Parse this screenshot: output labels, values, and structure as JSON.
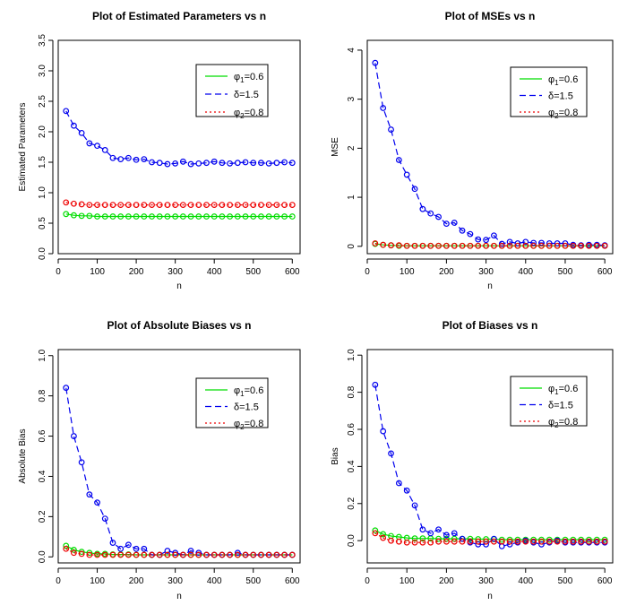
{
  "figure": {
    "panels": [
      {
        "title": "Plot of Estimated Parameters vs n",
        "xlabel": "n",
        "ylabel": "Estimated Parameters"
      },
      {
        "title": "Plot of MSEs vs n",
        "xlabel": "n",
        "ylabel": "MSE"
      },
      {
        "title": "Plot of Absolute Biases vs n",
        "xlabel": "n",
        "ylabel": "Absolute Bias"
      },
      {
        "title": "Plot of Biases vs n",
        "xlabel": "n",
        "ylabel": "Bias"
      }
    ],
    "legend": [
      {
        "symbol": "φ",
        "sub": "1",
        "rest": "=0.6",
        "color": "#00dd00",
        "dash": "solid"
      },
      {
        "symbol": "δ",
        "sub": "",
        "rest": "=1.5",
        "color": "#0000ee",
        "dash": "dashed"
      },
      {
        "symbol": "φ",
        "sub": "2",
        "rest": "=0.8",
        "color": "#ee0000",
        "dash": "dotted"
      }
    ]
  },
  "chart_data": [
    {
      "type": "line",
      "title": "Plot of Estimated Parameters vs n",
      "xlabel": "n",
      "ylabel": "Estimated Parameters",
      "xlim": [
        0,
        620
      ],
      "ylim": [
        0,
        3.5
      ],
      "xticks": [
        0,
        100,
        200,
        300,
        400,
        500,
        600
      ],
      "yticks": [
        0.0,
        0.5,
        1.0,
        1.5,
        2.0,
        2.5,
        3.0,
        3.5
      ],
      "ytick_labels": [
        "0.0",
        "0.5",
        "1.0",
        "1.5",
        "2.0",
        "2.5",
        "3.0",
        "3.5"
      ],
      "legend_position": "top-right",
      "x": [
        20,
        40,
        60,
        80,
        100,
        120,
        140,
        160,
        180,
        200,
        220,
        240,
        260,
        280,
        300,
        320,
        340,
        360,
        380,
        400,
        420,
        440,
        460,
        480,
        500,
        520,
        540,
        560,
        580,
        600
      ],
      "series": [
        {
          "name": "φ1=0.6",
          "color": "#00dd00",
          "dash": "solid",
          "values": [
            0.65,
            0.63,
            0.62,
            0.62,
            0.61,
            0.61,
            0.61,
            0.61,
            0.61,
            0.61,
            0.61,
            0.61,
            0.61,
            0.61,
            0.61,
            0.61,
            0.61,
            0.61,
            0.61,
            0.61,
            0.61,
            0.61,
            0.61,
            0.61,
            0.61,
            0.61,
            0.61,
            0.61,
            0.61,
            0.61
          ]
        },
        {
          "name": "δ=1.5",
          "color": "#0000ee",
          "dash": "dashed",
          "values": [
            2.34,
            2.1,
            1.98,
            1.81,
            1.77,
            1.7,
            1.57,
            1.55,
            1.57,
            1.54,
            1.55,
            1.5,
            1.49,
            1.47,
            1.48,
            1.51,
            1.47,
            1.48,
            1.49,
            1.51,
            1.49,
            1.48,
            1.49,
            1.5,
            1.49,
            1.49,
            1.48,
            1.49,
            1.5,
            1.49
          ]
        },
        {
          "name": "φ2=0.8",
          "color": "#ee0000",
          "dash": "dotted",
          "values": [
            0.84,
            0.82,
            0.81,
            0.8,
            0.8,
            0.8,
            0.8,
            0.8,
            0.8,
            0.8,
            0.8,
            0.8,
            0.8,
            0.8,
            0.8,
            0.8,
            0.8,
            0.8,
            0.8,
            0.8,
            0.8,
            0.8,
            0.8,
            0.8,
            0.8,
            0.8,
            0.8,
            0.8,
            0.8,
            0.8
          ]
        }
      ]
    },
    {
      "type": "line",
      "title": "Plot of MSEs vs n",
      "xlabel": "n",
      "ylabel": "MSE",
      "xlim": [
        0,
        620
      ],
      "ylim": [
        -0.15,
        4.2
      ],
      "xticks": [
        0,
        100,
        200,
        300,
        400,
        500,
        600
      ],
      "yticks": [
        0,
        1,
        2,
        3,
        4
      ],
      "ytick_labels": [
        "0",
        "1",
        "2",
        "3",
        "4"
      ],
      "legend_position": "top-right",
      "x": [
        20,
        40,
        60,
        80,
        100,
        120,
        140,
        160,
        180,
        200,
        220,
        240,
        260,
        280,
        300,
        320,
        340,
        360,
        380,
        400,
        420,
        440,
        460,
        480,
        500,
        520,
        540,
        560,
        580,
        600
      ],
      "series": [
        {
          "name": "φ1=0.6",
          "color": "#00dd00",
          "dash": "solid",
          "values": [
            0.05,
            0.03,
            0.02,
            0.01,
            0.01,
            0.01,
            0.01,
            0.01,
            0.01,
            0.01,
            0.01,
            0.01,
            0.01,
            0.01,
            0.01,
            0.01,
            0.01,
            0.01,
            0.01,
            0.01,
            0.01,
            0.01,
            0.01,
            0.01,
            0.01,
            0.01,
            0.01,
            0.01,
            0.01,
            0.01
          ]
        },
        {
          "name": "δ=1.5",
          "color": "#0000ee",
          "dash": "dashed",
          "values": [
            3.74,
            2.82,
            2.38,
            1.76,
            1.46,
            1.17,
            0.76,
            0.67,
            0.6,
            0.46,
            0.48,
            0.32,
            0.25,
            0.14,
            0.13,
            0.22,
            0.05,
            0.09,
            0.06,
            0.09,
            0.07,
            0.07,
            0.06,
            0.06,
            0.06,
            0.03,
            0.02,
            0.03,
            0.03,
            0.02
          ]
        },
        {
          "name": "φ2=0.8",
          "color": "#ee0000",
          "dash": "dotted",
          "values": [
            0.06,
            0.03,
            0.02,
            0.02,
            0.01,
            0.01,
            0.01,
            0.01,
            0.01,
            0.01,
            0.01,
            0.01,
            0.01,
            0.01,
            0.01,
            0.01,
            0.01,
            0.01,
            0.01,
            0.01,
            0.01,
            0.01,
            0.01,
            0.01,
            0.01,
            0.01,
            0.01,
            0.01,
            0.01,
            0.01
          ]
        }
      ]
    },
    {
      "type": "line",
      "title": "Plot of Absolute Biases vs n",
      "xlabel": "n",
      "ylabel": "Absolute Bias",
      "xlim": [
        0,
        620
      ],
      "ylim": [
        -0.03,
        1.03
      ],
      "xticks": [
        0,
        100,
        200,
        300,
        400,
        500,
        600
      ],
      "yticks": [
        0.0,
        0.2,
        0.4,
        0.6,
        0.8,
        1.0
      ],
      "ytick_labels": [
        "0.0",
        "0.2",
        "0.4",
        "0.6",
        "0.8",
        "1.0"
      ],
      "legend_position": "top-right",
      "x": [
        20,
        40,
        60,
        80,
        100,
        120,
        140,
        160,
        180,
        200,
        220,
        240,
        260,
        280,
        300,
        320,
        340,
        360,
        380,
        400,
        420,
        440,
        460,
        480,
        500,
        520,
        540,
        560,
        580,
        600
      ],
      "series": [
        {
          "name": "φ1=0.6",
          "color": "#00dd00",
          "dash": "solid",
          "values": [
            0.055,
            0.035,
            0.025,
            0.02,
            0.015,
            0.015,
            0.012,
            0.012,
            0.012,
            0.01,
            0.01,
            0.01,
            0.01,
            0.01,
            0.01,
            0.01,
            0.01,
            0.01,
            0.01,
            0.01,
            0.01,
            0.01,
            0.01,
            0.01,
            0.01,
            0.01,
            0.01,
            0.01,
            0.01,
            0.01
          ]
        },
        {
          "name": "δ=1.5",
          "color": "#0000ee",
          "dash": "dashed",
          "values": [
            0.84,
            0.6,
            0.47,
            0.31,
            0.27,
            0.19,
            0.07,
            0.04,
            0.06,
            0.04,
            0.04,
            0.01,
            0.01,
            0.03,
            0.02,
            0.01,
            0.03,
            0.02,
            0.01,
            0.01,
            0.01,
            0.01,
            0.02,
            0.01,
            0.01,
            0.01,
            0.01,
            0.01,
            0.01,
            0.01
          ]
        },
        {
          "name": "φ2=0.8",
          "color": "#ee0000",
          "dash": "dotted",
          "values": [
            0.04,
            0.02,
            0.015,
            0.01,
            0.01,
            0.01,
            0.01,
            0.01,
            0.01,
            0.01,
            0.01,
            0.01,
            0.01,
            0.01,
            0.01,
            0.01,
            0.01,
            0.01,
            0.01,
            0.01,
            0.01,
            0.01,
            0.01,
            0.01,
            0.01,
            0.01,
            0.01,
            0.01,
            0.01,
            0.01
          ]
        }
      ]
    },
    {
      "type": "line",
      "title": "Plot of Biases vs n",
      "xlabel": "n",
      "ylabel": "Bias",
      "xlim": [
        0,
        620
      ],
      "ylim": [
        -0.12,
        1.03
      ],
      "xticks": [
        0,
        100,
        200,
        300,
        400,
        500,
        600
      ],
      "yticks": [
        0.0,
        0.2,
        0.4,
        0.6,
        0.8,
        1.0
      ],
      "ytick_labels": [
        "0.0",
        "0.2",
        "0.4",
        "0.6",
        "0.8",
        "1.0"
      ],
      "legend_position": "top-right",
      "x": [
        20,
        40,
        60,
        80,
        100,
        120,
        140,
        160,
        180,
        200,
        220,
        240,
        260,
        280,
        300,
        320,
        340,
        360,
        380,
        400,
        420,
        440,
        460,
        480,
        500,
        520,
        540,
        560,
        580,
        600
      ],
      "series": [
        {
          "name": "φ1=0.6",
          "color": "#00dd00",
          "dash": "solid",
          "values": [
            0.055,
            0.035,
            0.025,
            0.02,
            0.015,
            0.012,
            0.012,
            0.012,
            0.01,
            0.01,
            0.01,
            0.01,
            0.01,
            0.008,
            0.008,
            0.008,
            0.005,
            0.005,
            0.005,
            0.005,
            0.005,
            0.005,
            0.005,
            0.005,
            0.005,
            0.005,
            0.005,
            0.005,
            0.005,
            0.005
          ]
        },
        {
          "name": "δ=1.5",
          "color": "#0000ee",
          "dash": "dashed",
          "values": [
            0.84,
            0.59,
            0.47,
            0.31,
            0.27,
            0.19,
            0.06,
            0.04,
            0.06,
            0.03,
            0.04,
            0.01,
            -0.01,
            -0.02,
            -0.02,
            0.01,
            -0.03,
            -0.02,
            -0.01,
            0.0,
            -0.01,
            -0.02,
            -0.01,
            0.0,
            -0.01,
            -0.01,
            -0.01,
            -0.01,
            -0.01,
            -0.01
          ]
        },
        {
          "name": "φ2=0.8",
          "color": "#ee0000",
          "dash": "dotted",
          "values": [
            0.04,
            0.015,
            0.0,
            -0.005,
            -0.01,
            -0.01,
            -0.01,
            -0.01,
            -0.005,
            -0.005,
            -0.005,
            -0.005,
            -0.005,
            -0.005,
            -0.005,
            -0.005,
            -0.005,
            -0.005,
            -0.005,
            -0.005,
            -0.005,
            -0.005,
            -0.005,
            -0.005,
            -0.005,
            -0.005,
            -0.005,
            -0.005,
            -0.005,
            -0.005
          ]
        }
      ]
    }
  ]
}
